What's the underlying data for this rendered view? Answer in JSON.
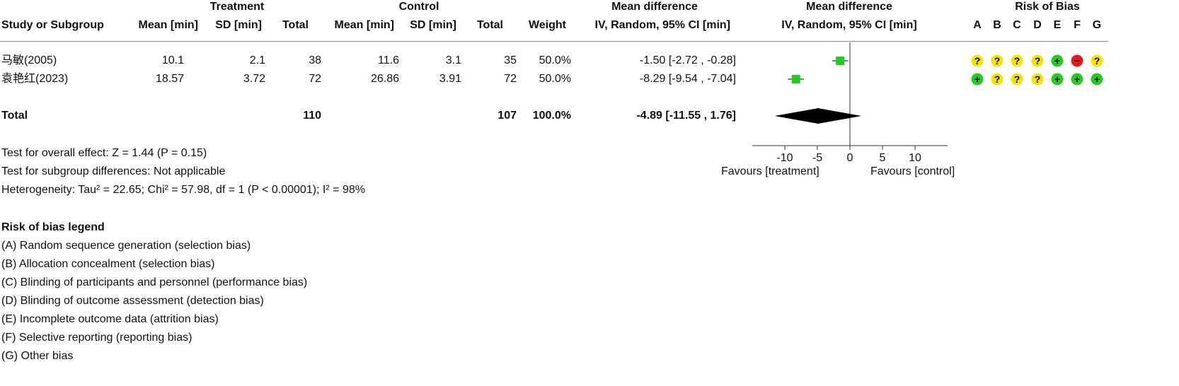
{
  "header": {
    "group_treatment": "Treatment",
    "group_control": "Control",
    "col_study": "Study or Subgroup",
    "col_mean_t": "Mean [min]",
    "col_sd_t": "SD [min]",
    "col_total_t": "Total",
    "col_mean_c": "Mean [min]",
    "col_sd_c": "SD [min]",
    "col_total_c": "Total",
    "col_weight": "Weight",
    "col_md_title": "Mean difference",
    "col_md_sub": "IV, Random, 95% CI [min]",
    "plot_title": "Mean difference",
    "plot_sub": "IV, Random, 95% CI [min]",
    "rob_title": "Risk of Bias",
    "rob_letters": [
      "A",
      "B",
      "C",
      "D",
      "E",
      "F",
      "G"
    ]
  },
  "studies": [
    {
      "name": "马敏(2005)",
      "mean_t": "10.1",
      "sd_t": "2.1",
      "total_t": "38",
      "mean_c": "11.6",
      "sd_c": "3.1",
      "total_c": "35",
      "weight": "50.0%",
      "ci_text": "-1.50 [-2.72 , -0.28]",
      "rob": [
        "?",
        "?",
        "?",
        "?",
        "+",
        "-",
        "?"
      ]
    },
    {
      "name": "袁艳红(2023)",
      "mean_t": "18.57",
      "sd_t": "3.72",
      "total_t": "72",
      "mean_c": "26.86",
      "sd_c": "3.91",
      "total_c": "72",
      "weight": "50.0%",
      "ci_text": "-8.29 [-9.54 , -7.04]",
      "rob": [
        "+",
        "?",
        "?",
        "?",
        "+",
        "+",
        "+"
      ]
    }
  ],
  "total": {
    "label": "Total",
    "total_t": "110",
    "total_c": "107",
    "weight": "100.0%",
    "ci_text": "-4.89 [-11.55 , 1.76]"
  },
  "notes": {
    "overall": "Test for overall effect: Z = 1.44 (P = 0.15)",
    "subgroup": "Test for subgroup differences: Not applicable",
    "heterogeneity": "Heterogeneity: Tau² = 22.65; Chi² = 57.98, df = 1 (P < 0.00001); I² = 98%"
  },
  "axis": {
    "favours_left": "Favours [treatment]",
    "favours_right": "Favours [control]"
  },
  "legend": {
    "title": "Risk of bias legend",
    "items": [
      "(A) Random sequence generation (selection bias)",
      "(B) Allocation concealment (selection bias)",
      "(C) Blinding of participants and personnel (performance bias)",
      "(D) Blinding of outcome assessment (detection bias)",
      "(E) Incomplete outcome data (attrition bias)",
      "(F) Selective reporting (reporting bias)",
      "(G) Other bias"
    ]
  },
  "colors": {
    "low_risk": "#22cc22",
    "unclear_risk": "#f5e400",
    "high_risk": "#e01b1b",
    "study_marker": "#22cc22",
    "diamond": "#000000"
  },
  "chart_data": {
    "type": "forest",
    "xlim": [
      -15,
      15
    ],
    "xticks": [
      -10,
      -5,
      0,
      5,
      10
    ],
    "studies": [
      {
        "name": "马敏(2005)",
        "md": -1.5,
        "lower": -2.72,
        "upper": -0.28,
        "weight": 50.0
      },
      {
        "name": "袁艳红(2023)",
        "md": -8.29,
        "lower": -9.54,
        "upper": -7.04,
        "weight": 50.0
      }
    ],
    "pooled": {
      "md": -4.89,
      "lower": -11.55,
      "upper": 1.76
    }
  }
}
